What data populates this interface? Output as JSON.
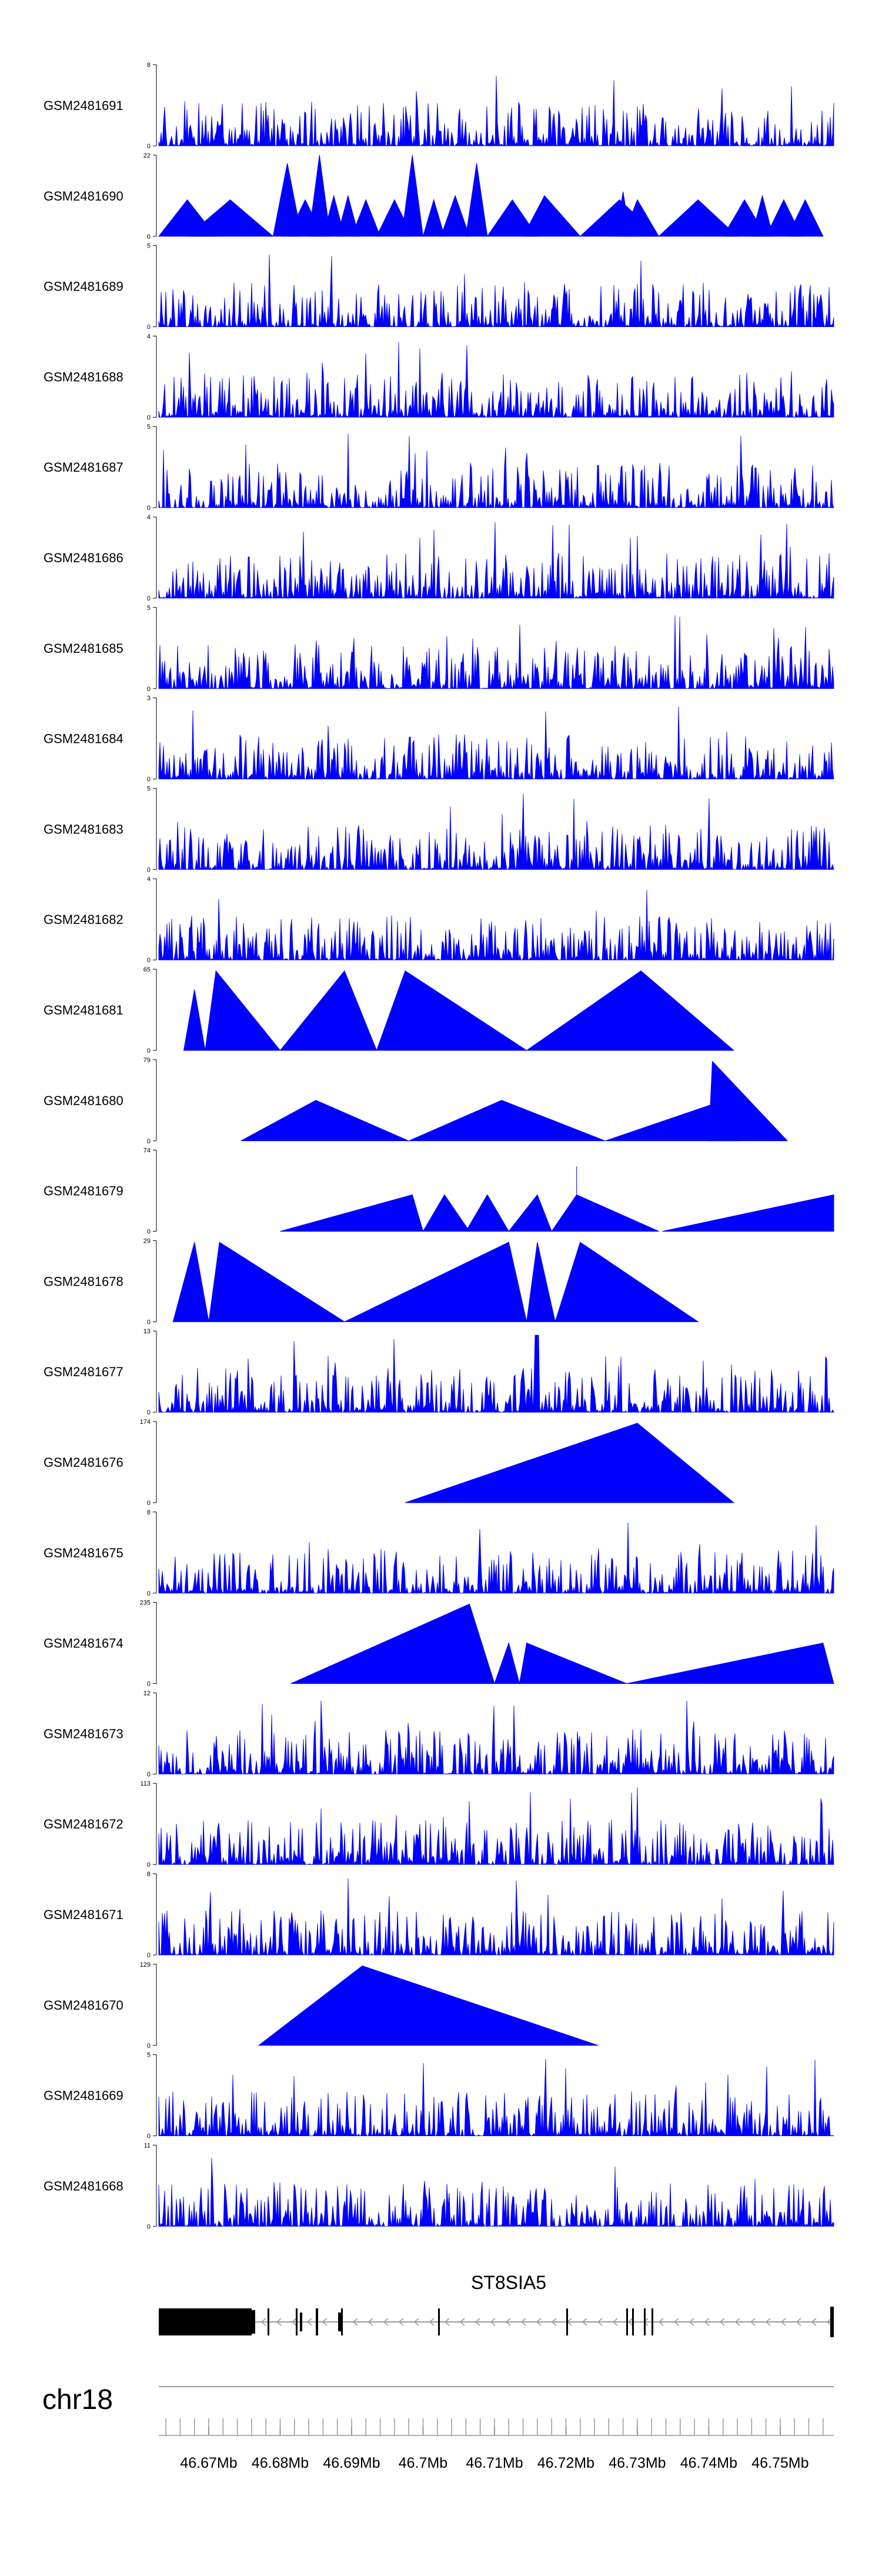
{
  "chart_data": {
    "type": "area",
    "title": "",
    "region": {
      "chromosome": "chr18",
      "start_mb": 46.663,
      "end_mb": 46.7575
    },
    "colors": {
      "signal": "#0000ff",
      "axis": "#000000",
      "gene": "#000000",
      "ideogram_line": "#999999"
    },
    "tracks": [
      {
        "name": "GSM2481691",
        "ymax": 8,
        "ymin": 0,
        "style": "dense",
        "seed": 11
      },
      {
        "name": "GSM2481690",
        "ymax": 22,
        "ymin": 0,
        "style": "peaks",
        "seed": 12,
        "peaks": [
          [
            46.663,
            46.667,
            46.671,
            0.45
          ],
          [
            46.667,
            46.673,
            46.679,
            0.45
          ],
          [
            46.679,
            46.681,
            46.683,
            0.9
          ],
          [
            46.681,
            46.6835,
            46.686,
            0.45
          ],
          [
            46.684,
            46.6855,
            46.687,
            1.0
          ],
          [
            46.686,
            46.6875,
            46.689,
            0.5
          ],
          [
            46.688,
            46.6895,
            46.691,
            0.5
          ],
          [
            46.69,
            46.692,
            46.694,
            0.45
          ],
          [
            46.6935,
            46.696,
            46.6985,
            0.45
          ],
          [
            46.697,
            46.6985,
            46.7,
            1.0
          ],
          [
            46.7,
            46.7015,
            46.703,
            0.45
          ],
          [
            46.7025,
            46.7045,
            46.7065,
            0.5
          ],
          [
            46.706,
            46.7075,
            46.709,
            0.9
          ],
          [
            46.709,
            46.7125,
            46.716,
            0.45
          ],
          [
            46.714,
            46.717,
            46.722,
            0.5
          ],
          [
            46.722,
            46.7275,
            46.733,
            0.45
          ],
          [
            46.727,
            46.728,
            46.729,
            0.55
          ],
          [
            46.728,
            46.73,
            46.733,
            0.45
          ],
          [
            46.733,
            46.7385,
            46.744,
            0.45
          ],
          [
            46.742,
            46.745,
            46.748,
            0.45
          ],
          [
            46.746,
            46.7475,
            46.749,
            0.5
          ],
          [
            46.748,
            46.7505,
            46.753,
            0.45
          ],
          [
            46.751,
            46.7535,
            46.756,
            0.45
          ]
        ]
      },
      {
        "name": "GSM2481689",
        "ymax": 5,
        "ymin": 0,
        "style": "dense",
        "seed": 13
      },
      {
        "name": "GSM2481688",
        "ymax": 4,
        "ymin": 0,
        "style": "dense",
        "seed": 14
      },
      {
        "name": "GSM2481687",
        "ymax": 5,
        "ymin": 0,
        "style": "dense",
        "seed": 15
      },
      {
        "name": "GSM2481686",
        "ymax": 4,
        "ymin": 0,
        "style": "dense",
        "seed": 16
      },
      {
        "name": "GSM2481685",
        "ymax": 5,
        "ymin": 0,
        "style": "dense",
        "seed": 17
      },
      {
        "name": "GSM2481684",
        "ymax": 3,
        "ymin": 0,
        "style": "dense",
        "seed": 18
      },
      {
        "name": "GSM2481683",
        "ymax": 5,
        "ymin": 0,
        "style": "dense",
        "seed": 19
      },
      {
        "name": "GSM2481682",
        "ymax": 4,
        "ymin": 0,
        "style": "dense",
        "seed": 20
      },
      {
        "name": "GSM2481681",
        "ymax": 65,
        "ymin": 0,
        "style": "peaks",
        "seed": 21,
        "peaks": [
          [
            46.6665,
            46.668,
            46.6695,
            0.75
          ],
          [
            46.6695,
            46.6705,
            46.671,
            0.55
          ],
          [
            46.6695,
            46.671,
            46.68,
            0.98
          ],
          [
            46.68,
            46.689,
            46.6935,
            0.98
          ],
          [
            46.6935,
            46.6975,
            46.7145,
            0.98
          ],
          [
            46.7145,
            46.7305,
            46.7435,
            0.98
          ]
        ]
      },
      {
        "name": "GSM2481680",
        "ymax": 79,
        "ymin": 0,
        "style": "peaks",
        "seed": 22,
        "peaks": [
          [
            46.6745,
            46.685,
            46.698,
            0.5
          ],
          [
            46.698,
            46.711,
            46.7255,
            0.5
          ],
          [
            46.7255,
            46.7405,
            46.744,
            0.45
          ],
          [
            46.74,
            46.7405,
            46.751,
            0.98
          ]
        ]
      },
      {
        "name": "GSM2481679",
        "ymax": 74,
        "ymin": 0,
        "style": "peaks",
        "seed": 23,
        "peaks": [
          [
            46.68,
            46.6985,
            46.7,
            0.45
          ],
          [
            46.7,
            46.703,
            46.7065,
            0.45
          ],
          [
            46.706,
            46.709,
            46.712,
            0.45
          ],
          [
            46.712,
            46.716,
            46.718,
            0.45
          ],
          [
            46.718,
            46.7215,
            46.733,
            0.45
          ],
          [
            46.7215,
            46.7215,
            46.7215,
            0.8
          ],
          [
            46.7335,
            46.7575,
            46.7575,
            0.45
          ]
        ]
      },
      {
        "name": "GSM2481678",
        "ymax": 29,
        "ymin": 0,
        "style": "peaks",
        "seed": 24,
        "peaks": [
          [
            46.665,
            46.668,
            46.67,
            0.98
          ],
          [
            46.67,
            46.6715,
            46.689,
            0.98
          ],
          [
            46.689,
            46.712,
            46.7145,
            0.98
          ],
          [
            46.7145,
            46.716,
            46.7185,
            0.98
          ],
          [
            46.7185,
            46.722,
            46.7385,
            0.98
          ]
        ]
      },
      {
        "name": "GSM2481677",
        "ymax": 13,
        "ymin": 0,
        "style": "dense",
        "seed": 25,
        "spike_mb": 46.716,
        "spike_frac": 0.95
      },
      {
        "name": "GSM2481676",
        "ymax": 174,
        "ymin": 0,
        "style": "peaks",
        "seed": 26,
        "peaks": [
          [
            46.6975,
            46.73,
            46.7435,
            0.98
          ]
        ]
      },
      {
        "name": "GSM2481675",
        "ymax": 8,
        "ymin": 0,
        "style": "dense",
        "seed": 27
      },
      {
        "name": "GSM2481674",
        "ymax": 235,
        "ymin": 0,
        "style": "peaks",
        "seed": 28,
        "peaks": [
          [
            46.6815,
            46.7065,
            46.71,
            0.98
          ],
          [
            46.71,
            46.712,
            46.7135,
            0.5
          ],
          [
            46.7135,
            46.7145,
            46.7285,
            0.5
          ],
          [
            46.7285,
            46.756,
            46.7575,
            0.5
          ]
        ]
      },
      {
        "name": "GSM2481673",
        "ymax": 12,
        "ymin": 0,
        "style": "dense",
        "seed": 29
      },
      {
        "name": "GSM2481672",
        "ymax": 113,
        "ymin": 0,
        "style": "dense",
        "seed": 30
      },
      {
        "name": "GSM2481671",
        "ymax": 8,
        "ymin": 0,
        "style": "dense",
        "seed": 31
      },
      {
        "name": "GSM2481670",
        "ymax": 129,
        "ymin": 0,
        "style": "peaks",
        "seed": 32,
        "peaks": [
          [
            46.677,
            46.6915,
            46.7245,
            0.98
          ]
        ]
      },
      {
        "name": "GSM2481669",
        "ymax": 5,
        "ymin": 0,
        "style": "dense",
        "seed": 33
      },
      {
        "name": "GSM2481668",
        "ymax": 11,
        "ymin": 0,
        "style": "dense",
        "seed": 34
      }
    ],
    "gene": {
      "name": "ST8SIA5",
      "strand": "-",
      "start_mb": 46.663,
      "end_mb": 46.7575
    },
    "xaxis": {
      "label_text": [
        "46.67Mb",
        "46.68Mb",
        "46.69Mb",
        "46.7Mb",
        "46.71Mb",
        "46.72Mb",
        "46.73Mb",
        "46.74Mb",
        "46.75Mb"
      ],
      "label_values": [
        46.67,
        46.68,
        46.69,
        46.7,
        46.71,
        46.72,
        46.73,
        46.74,
        46.75
      ],
      "minor_tick_step_mb": 0.002
    }
  }
}
